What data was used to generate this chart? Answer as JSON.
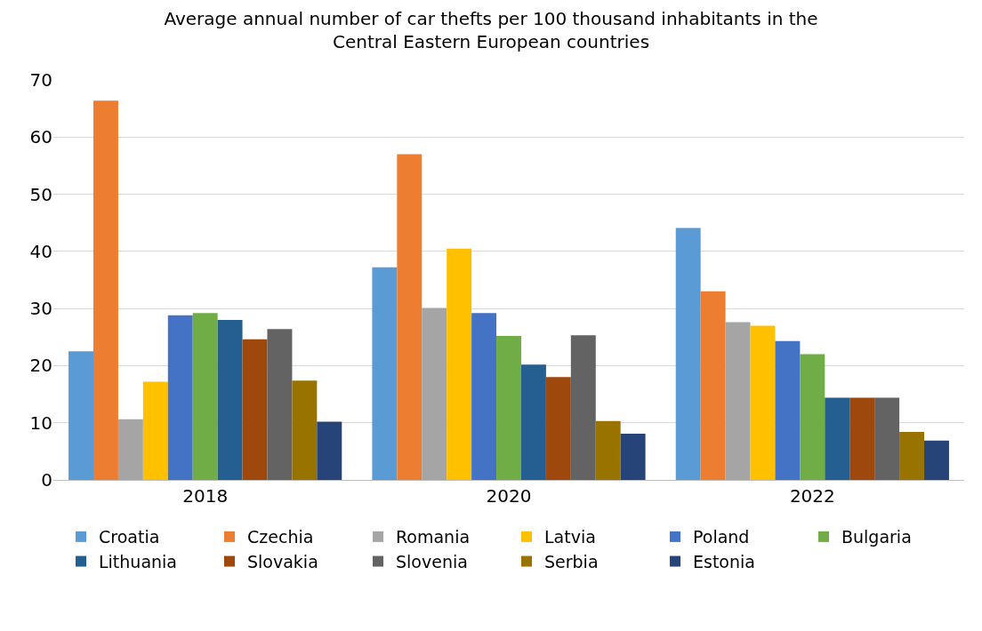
{
  "chart_data": {
    "type": "bar",
    "title": "Average annual number of car thefts per 100 thousand inhabitants in the\nCentral Eastern European countries",
    "categories": [
      "2018",
      "2020",
      "2022"
    ],
    "series": [
      {
        "name": "Croatia",
        "color": "#5b9bd5",
        "values": [
          22.5,
          37.2,
          44.1
        ]
      },
      {
        "name": "Czechia",
        "color": "#ed7d31",
        "values": [
          66.4,
          57.0,
          33.0
        ]
      },
      {
        "name": "Romania",
        "color": "#a5a5a5",
        "values": [
          10.6,
          30.1,
          27.6
        ]
      },
      {
        "name": "Latvia",
        "color": "#ffc000",
        "values": [
          17.2,
          40.5,
          27.0
        ]
      },
      {
        "name": "Poland",
        "color": "#4472c4",
        "values": [
          28.8,
          29.2,
          24.3
        ]
      },
      {
        "name": "Bulgaria",
        "color": "#70ad47",
        "values": [
          29.2,
          25.2,
          22.0
        ]
      },
      {
        "name": "Lithuania",
        "color": "#255e91",
        "values": [
          28.0,
          20.2,
          14.4
        ]
      },
      {
        "name": "Slovakia",
        "color": "#9e480e",
        "values": [
          24.6,
          18.0,
          14.4
        ]
      },
      {
        "name": "Slovenia",
        "color": "#636363",
        "values": [
          26.4,
          25.3,
          14.4
        ]
      },
      {
        "name": "Serbia",
        "color": "#997300",
        "values": [
          17.4,
          10.3,
          8.4
        ]
      },
      {
        "name": "Estonia",
        "color": "#264478",
        "values": [
          10.2,
          8.1,
          6.9
        ]
      }
    ],
    "ylim": [
      0,
      70
    ],
    "yticks": [
      0,
      10,
      20,
      30,
      40,
      50,
      60,
      70
    ],
    "grid": "y",
    "legend": "bottom"
  }
}
